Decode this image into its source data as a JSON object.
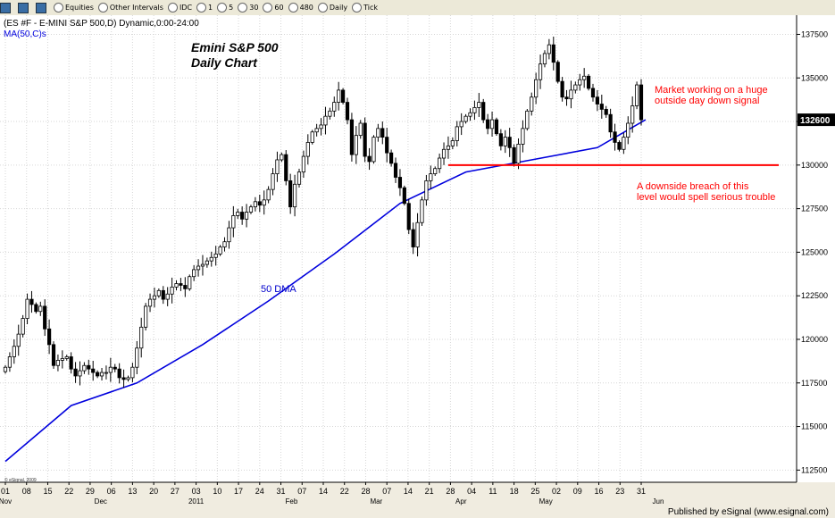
{
  "toolbar": {
    "items": [
      {
        "icon": "window-icon",
        "label": ""
      },
      {
        "icon": "bar-chart-icon",
        "label": ""
      },
      {
        "icon": "plus-icon",
        "label": ""
      },
      {
        "icon": "equities-icon",
        "label": "Equities"
      },
      {
        "icon": "intervals-icon",
        "label": "Other Intervals"
      },
      {
        "icon": "clock-icon",
        "label": "IDC"
      },
      {
        "icon": "clock-icon",
        "label": "1"
      },
      {
        "icon": "clock-icon",
        "label": "5"
      },
      {
        "icon": "clock-icon",
        "label": "30"
      },
      {
        "icon": "clock-icon",
        "label": "60"
      },
      {
        "icon": "clock-icon",
        "label": "480"
      },
      {
        "icon": "clock-icon",
        "label": "Daily"
      },
      {
        "icon": "clock-icon",
        "label": "Tick"
      }
    ]
  },
  "header": {
    "symbol_line": "(ES #F - E-MINI S&P 500,D) Dynamic,0:00-24:00",
    "study": "MA(50,C)s"
  },
  "annotations": {
    "title_line1": "Emini S&P 500",
    "title_line2": "Daily Chart",
    "ma_label": "50 DMA",
    "note1_line1": "Market working on a huge",
    "note1_line2": "outside day down signal",
    "note2_line1": "A downside breach of this",
    "note2_line2": "level would spell serious trouble"
  },
  "footer": {
    "copyright": "© eSignal, 2009",
    "published": "Published by eSignal (www.esignal.com)"
  },
  "colors": {
    "background": "#ffffff",
    "price_bars": "#000000",
    "ma_line": "#0000dd",
    "support_line": "#ff0000",
    "annotation_red": "#ff0000",
    "annotation_blue": "#0000cc",
    "last_price_box": "#000000"
  },
  "chart_data": {
    "type": "candlestick",
    "title": "Emini S&P 500",
    "subtitle": "Daily Chart",
    "y_ticks": [
      "137500",
      "135000",
      "132500",
      "130000",
      "127500",
      "125000",
      "122500",
      "120000",
      "117500",
      "115000",
      "112500"
    ],
    "ylim": [
      111800,
      138600
    ],
    "last_price": "132600",
    "support_level": 130000,
    "x_labels": [
      "01",
      "08",
      "15",
      "22",
      "29",
      "06",
      "13",
      "20",
      "27",
      "03",
      "10",
      "17",
      "24",
      "31",
      "07",
      "14",
      "22",
      "28",
      "07",
      "14",
      "21",
      "28",
      "04",
      "11",
      "18",
      "25",
      "02",
      "09",
      "16",
      "23",
      "31"
    ],
    "month_labels": [
      "Nov",
      "Dec",
      "2011",
      "Feb",
      "Mar",
      "Apr",
      "May",
      "Jun"
    ],
    "grid": true,
    "series": [
      {
        "name": "ES #F",
        "type": "candlestick",
        "closes": [
          118400,
          119000,
          119600,
          120300,
          121200,
          122300,
          122000,
          121600,
          121900,
          120600,
          119700,
          118500,
          118800,
          118900,
          119000,
          118300,
          117900,
          118200,
          118500,
          118300,
          118100,
          117900,
          118100,
          118100,
          118400,
          118300,
          117800,
          117700,
          117800,
          118400,
          119500,
          120700,
          121900,
          122300,
          122500,
          122800,
          122300,
          122600,
          123000,
          123200,
          123100,
          122900,
          123600,
          124000,
          124200,
          124300,
          124500,
          124700,
          124900,
          125300,
          125600,
          126400,
          127100,
          127300,
          126900,
          127300,
          127600,
          127900,
          127700,
          128000,
          128600,
          129500,
          130300,
          130600,
          129100,
          127600,
          128900,
          129600,
          130500,
          131300,
          131900,
          132100,
          132300,
          132800,
          133100,
          133600,
          134300,
          133600,
          132600,
          130600,
          131700,
          132400,
          130500,
          130200,
          131600,
          132100,
          131600,
          130700,
          130100,
          129300,
          128700,
          127800,
          126300,
          125300,
          126700,
          128000,
          129100,
          129500,
          129800,
          130400,
          130900,
          131100,
          131400,
          132200,
          132500,
          132800,
          133000,
          133300,
          133600,
          132600,
          132100,
          132600,
          131800,
          131100,
          131600,
          131000,
          130100,
          131200,
          132100,
          133100,
          133900,
          134900,
          135800,
          136400,
          136900,
          135900,
          134800,
          133900,
          133800,
          134300,
          134600,
          134900,
          135100,
          134400,
          133900,
          133500,
          133200,
          132900,
          131900,
          131300,
          130900,
          131600,
          132400,
          133400,
          134600,
          132600
        ]
      },
      {
        "name": "MA(50,C)s",
        "type": "line",
        "x": [
          0,
          15,
          30,
          45,
          60,
          75,
          90,
          105,
          120,
          135,
          146
        ],
        "values": [
          113000,
          116200,
          117500,
          119700,
          122200,
          124900,
          127800,
          129600,
          130300,
          131000,
          132600
        ]
      }
    ]
  }
}
